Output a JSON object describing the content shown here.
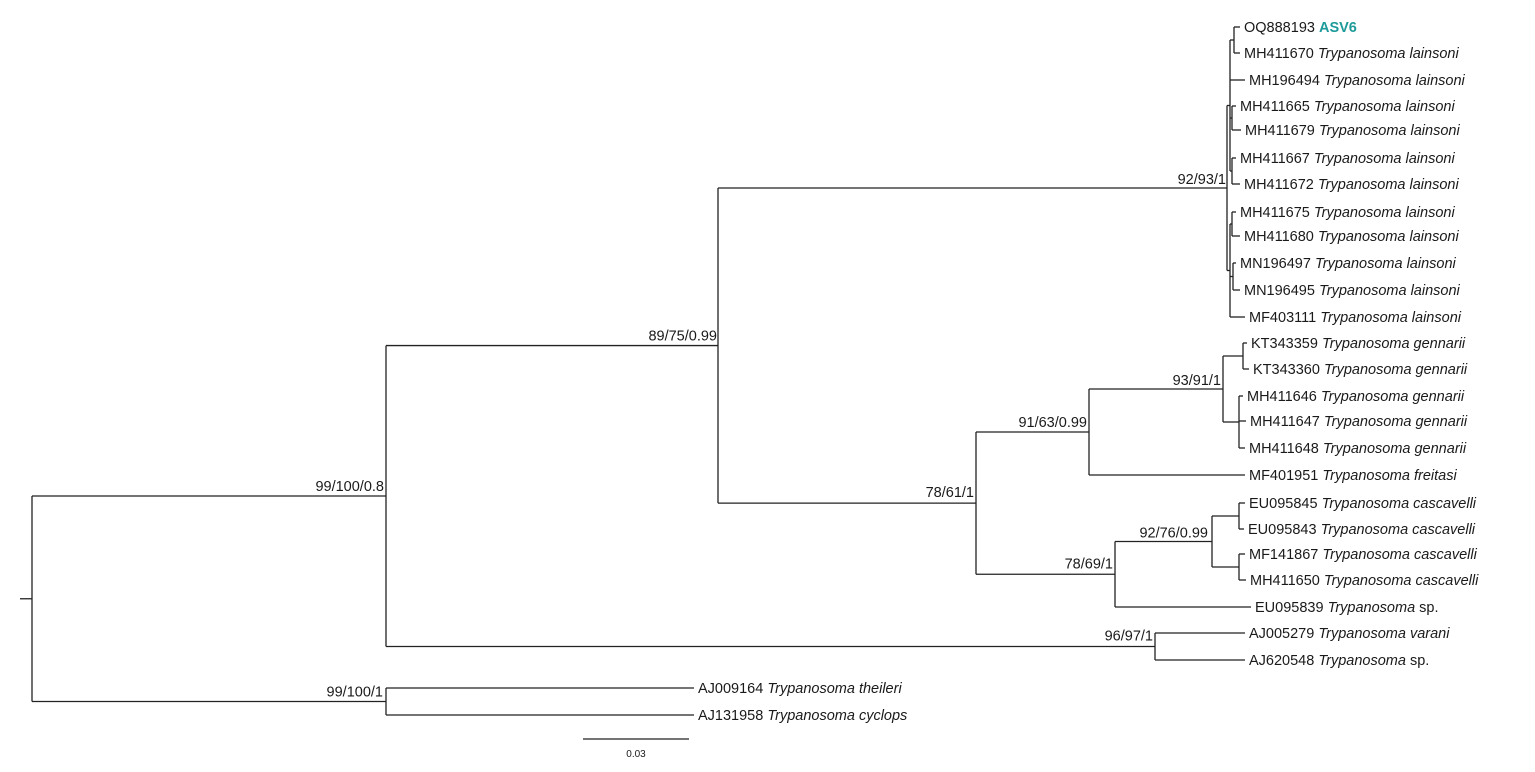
{
  "tree": {
    "tips": [
      {
        "id": "t1",
        "accession": "OQ888193",
        "species": "",
        "genus_extra": "ASV6",
        "highlight": true
      },
      {
        "id": "t2",
        "accession": "MH411670",
        "species": "Trypanosoma lainsoni"
      },
      {
        "id": "t3",
        "accession": "MH196494",
        "species": "Trypanosoma lainsoni"
      },
      {
        "id": "t4",
        "accession": "MH411665",
        "species": "Trypanosoma lainsoni"
      },
      {
        "id": "t5",
        "accession": "MH411679",
        "species": "Trypanosoma lainsoni"
      },
      {
        "id": "t6",
        "accession": "MH411667",
        "species": "Trypanosoma lainsoni"
      },
      {
        "id": "t7",
        "accession": "MH411672",
        "species": "Trypanosoma lainsoni"
      },
      {
        "id": "t8",
        "accession": "MH411675",
        "species": "Trypanosoma lainsoni"
      },
      {
        "id": "t9",
        "accession": "MH411680",
        "species": "Trypanosoma lainsoni"
      },
      {
        "id": "t10",
        "accession": "MN196497",
        "species": "Trypanosoma lainsoni"
      },
      {
        "id": "t11",
        "accession": "MN196495",
        "species": "Trypanosoma lainsoni"
      },
      {
        "id": "t12",
        "accession": "MF403111",
        "species": "Trypanosoma lainsoni"
      },
      {
        "id": "t13",
        "accession": "KT343359",
        "species": "Trypanosoma gennarii"
      },
      {
        "id": "t14",
        "accession": "KT343360",
        "species": "Trypanosoma gennarii"
      },
      {
        "id": "t15",
        "accession": "MH411646",
        "species": "Trypanosoma gennarii"
      },
      {
        "id": "t16",
        "accession": "MH411647",
        "species": "Trypanosoma gennarii"
      },
      {
        "id": "t17",
        "accession": "MH411648",
        "species": "Trypanosoma gennarii"
      },
      {
        "id": "t18",
        "accession": "MF401951",
        "species": "Trypanosoma freitasi"
      },
      {
        "id": "t19",
        "accession": "EU095845",
        "species": "Trypanosoma cascavelli"
      },
      {
        "id": "t20",
        "accession": "EU095843",
        "species": "Trypanosoma cascavelli"
      },
      {
        "id": "t21",
        "accession": "MF141867",
        "species": "Trypanosoma cascavelli"
      },
      {
        "id": "t22",
        "accession": "MH411650",
        "species": "Trypanosoma cascavelli"
      },
      {
        "id": "t23",
        "accession": "EU095839",
        "species": "Trypanosoma",
        "suffix": "sp."
      },
      {
        "id": "t24",
        "accession": "AJ005279",
        "species": "Trypanosoma varani"
      },
      {
        "id": "t25",
        "accession": "AJ620548",
        "species": "Trypanosoma",
        "suffix": "sp."
      },
      {
        "id": "t26",
        "accession": "AJ009164",
        "species": "Trypanosoma theileri"
      },
      {
        "id": "t27",
        "accession": "AJ131958",
        "species": "Trypanosoma cyclops"
      }
    ],
    "supports": {
      "lainsoni_clade": "92/93/1",
      "lainsoni_gennarii_cascavelli": "89/75/0.99",
      "ingroup": "99/100/0.8",
      "gennarii_clade": "93/91/1",
      "gennarii_freitasi": "91/63/0.99",
      "gennarii_cascavelli": "78/61/1",
      "cascavelli_clade": "92/76/0.99",
      "cascavelli_sp": "78/69/1",
      "varani_sp": "96/97/1",
      "outgroup": "99/100/1"
    },
    "scale_bar": {
      "label": "0.03"
    },
    "colors": {
      "highlight": "#1e9a9a",
      "branch": "#222222"
    }
  }
}
